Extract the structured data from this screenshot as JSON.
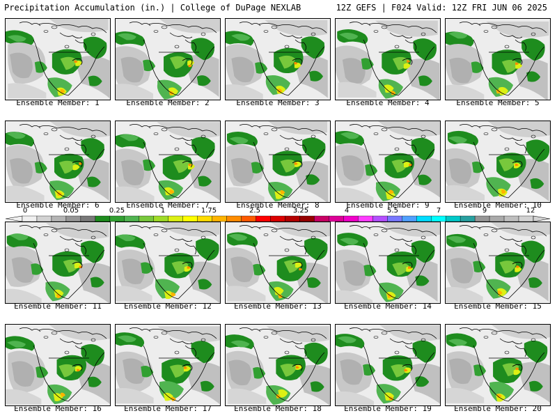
{
  "header": {
    "title": "Precipitation Accumulation (in.) | College of DuPage NEXLAB",
    "run_info": "12Z GEFS | F024 Valid: 12Z FRI JUN 06 2025"
  },
  "members": [
    "Ensemble Member: 1",
    "Ensemble Member: 2",
    "Ensemble Member: 3",
    "Ensemble Member: 4",
    "Ensemble Member: 5",
    "Ensemble Member: 6",
    "Ensemble Member: 7",
    "Ensemble Member: 8",
    "Ensemble Member: 9",
    "Ensemble Member: 10",
    "Ensemble Member: 11",
    "Ensemble Member: 12",
    "Ensemble Member: 13",
    "Ensemble Member: 14",
    "Ensemble Member: 15",
    "Ensemble Member: 16",
    "Ensemble Member: 17",
    "Ensemble Member: 18",
    "Ensemble Member: 19",
    "Ensemble Member: 20"
  ],
  "colorbar": {
    "tick_labels": [
      "0",
      "0.05",
      "0.25",
      "1",
      "1.75",
      "2.5",
      "3.25",
      "4",
      "5.5",
      "7",
      "9",
      "12"
    ],
    "colors": [
      "#f0f0f0",
      "#d2d2d2",
      "#b4b4b4",
      "#969696",
      "#787878",
      "#1e8c1e",
      "#32a032",
      "#50b450",
      "#78c83c",
      "#a0dc28",
      "#dcf014",
      "#ffff00",
      "#ffdc00",
      "#ffb400",
      "#ff8c00",
      "#ff5a00",
      "#ff0000",
      "#dc0000",
      "#b40000",
      "#960000",
      "#c80064",
      "#dc0096",
      "#f000c8",
      "#ff3cff",
      "#b450ff",
      "#7878ff",
      "#50a0ff",
      "#00dcff",
      "#00ffff",
      "#00c8c8",
      "#28a0a0",
      "#969696",
      "#aaaaaa",
      "#bebebe",
      "#d2d2d2"
    ]
  }
}
